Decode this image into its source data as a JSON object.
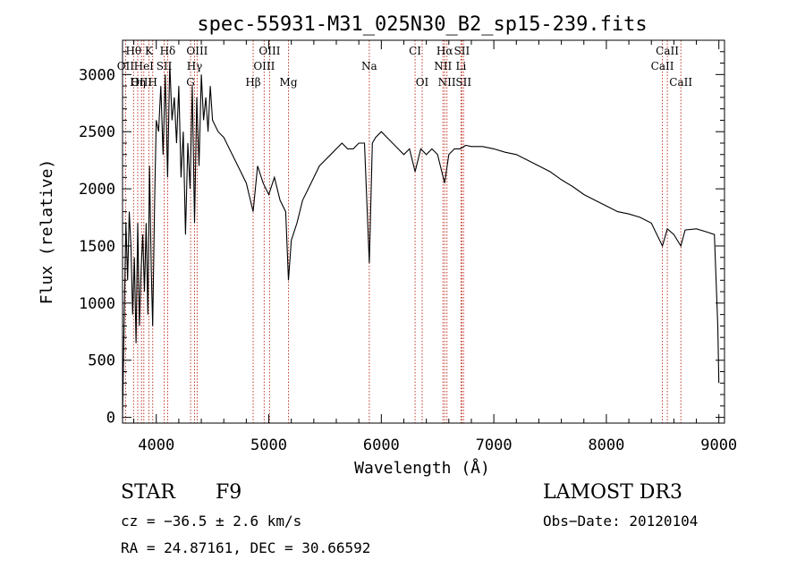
{
  "chart_data": {
    "type": "line",
    "title": "spec-55931-M31_025N30_B2_sp15-239.fits",
    "xlabel": "Wavelength (Å)",
    "ylabel": "Flux (relative)",
    "xlim": [
      3700,
      9050
    ],
    "ylim": [
      -50,
      3300
    ],
    "xticks": [
      4000,
      5000,
      6000,
      7000,
      8000,
      9000
    ],
    "yticks": [
      0,
      500,
      1000,
      1500,
      2000,
      2500,
      3000
    ],
    "xtick_labels": [
      "4000",
      "5000",
      "6000",
      "7000",
      "8000",
      "9000"
    ],
    "ytick_labels": [
      "0",
      "500",
      "1000",
      "1500",
      "2000",
      "2500",
      "3000"
    ],
    "grid": false,
    "series": [
      {
        "name": "flux",
        "x": [
          3700,
          3715,
          3730,
          3745,
          3760,
          3775,
          3790,
          3805,
          3820,
          3835,
          3850,
          3865,
          3880,
          3895,
          3910,
          3925,
          3940,
          3955,
          3968,
          3985,
          4000,
          4020,
          4040,
          4060,
          4080,
          4101,
          4120,
          4140,
          4160,
          4180,
          4200,
          4220,
          4240,
          4260,
          4280,
          4300,
          4320,
          4340,
          4360,
          4380,
          4400,
          4420,
          4440,
          4460,
          4480,
          4500,
          4550,
          4600,
          4650,
          4700,
          4750,
          4800,
          4861,
          4900,
          4950,
          5000,
          5050,
          5100,
          5150,
          5175,
          5200,
          5250,
          5300,
          5350,
          5400,
          5450,
          5500,
          5550,
          5600,
          5650,
          5700,
          5750,
          5800,
          5850,
          5893,
          5920,
          5950,
          6000,
          6050,
          6100,
          6150,
          6200,
          6250,
          6300,
          6350,
          6400,
          6450,
          6500,
          6563,
          6600,
          6650,
          6700,
          6750,
          6800,
          6900,
          7000,
          7100,
          7200,
          7300,
          7400,
          7500,
          7600,
          7700,
          7800,
          7900,
          8000,
          8100,
          8200,
          8300,
          8400,
          8498,
          8542,
          8600,
          8662,
          8700,
          8800,
          8900,
          8960,
          8990,
          9000
        ],
        "values": [
          0,
          900,
          1700,
          1200,
          1800,
          1500,
          900,
          1400,
          650,
          1700,
          800,
          1300,
          1600,
          1100,
          1700,
          900,
          2200,
          1300,
          800,
          1900,
          2600,
          2500,
          2900,
          2300,
          3000,
          2100,
          3100,
          2600,
          2800,
          2400,
          2900,
          2100,
          2500,
          1600,
          2400,
          2000,
          2900,
          1700,
          2800,
          2200,
          3000,
          2600,
          2800,
          2500,
          2900,
          2600,
          2500,
          2450,
          2350,
          2250,
          2150,
          2050,
          1800,
          2200,
          2050,
          1950,
          2100,
          1900,
          1800,
          1200,
          1550,
          1700,
          1900,
          2000,
          2100,
          2200,
          2250,
          2300,
          2350,
          2400,
          2350,
          2350,
          2400,
          2400,
          1350,
          2400,
          2450,
          2500,
          2450,
          2400,
          2350,
          2300,
          2350,
          2150,
          2350,
          2300,
          2350,
          2300,
          2050,
          2300,
          2350,
          2350,
          2380,
          2370,
          2370,
          2350,
          2320,
          2300,
          2250,
          2200,
          2150,
          2080,
          2020,
          1950,
          1900,
          1850,
          1800,
          1780,
          1750,
          1700,
          1500,
          1650,
          1600,
          1500,
          1640,
          1650,
          1620,
          1600,
          800,
          300
        ]
      }
    ],
    "line_markers": [
      {
        "label": "Hθ",
        "wave": 3798,
        "row": 1
      },
      {
        "label": "K",
        "wave": 3934,
        "row": 1
      },
      {
        "label": "Hδ",
        "wave": 4101,
        "row": 1
      },
      {
        "label": "OIII",
        "wave": 4363,
        "row": 1
      },
      {
        "label": "OIII",
        "wave": 5007,
        "row": 1
      },
      {
        "label": "CI",
        "wave": 6300,
        "row": 1
      },
      {
        "label": "Hα",
        "wave": 6563,
        "row": 1
      },
      {
        "label": "SII",
        "wave": 6716,
        "row": 1
      },
      {
        "label": "CaII",
        "wave": 8542,
        "row": 1
      },
      {
        "label": "OII",
        "wave": 3727,
        "row": 2
      },
      {
        "label": "HeI",
        "wave": 3889,
        "row": 2
      },
      {
        "label": "SII",
        "wave": 4070,
        "row": 2
      },
      {
        "label": "Hγ",
        "wave": 4340,
        "row": 2
      },
      {
        "label": "OIII",
        "wave": 4959,
        "row": 2
      },
      {
        "label": "Na",
        "wave": 5893,
        "row": 2
      },
      {
        "label": "NII",
        "wave": 6548,
        "row": 2
      },
      {
        "label": "Li",
        "wave": 6708,
        "row": 2
      },
      {
        "label": "CaII",
        "wave": 8498,
        "row": 2
      },
      {
        "label": "OIII",
        "wave": 3869,
        "row": 3
      },
      {
        "label": "Hη",
        "wave": 3835,
        "row": 3
      },
      {
        "label": "H",
        "wave": 3968,
        "row": 3
      },
      {
        "label": "G",
        "wave": 4305,
        "row": 3
      },
      {
        "label": "Hβ",
        "wave": 4861,
        "row": 3
      },
      {
        "label": "Mg",
        "wave": 5175,
        "row": 3
      },
      {
        "label": "OI",
        "wave": 6363,
        "row": 3
      },
      {
        "label": "NII",
        "wave": 6583,
        "row": 3
      },
      {
        "label": "SII",
        "wave": 6731,
        "row": 3
      },
      {
        "label": "CaII",
        "wave": 8662,
        "row": 3
      }
    ]
  },
  "info": {
    "object_class": "STAR",
    "subclass": "F9",
    "cz": "cz = −36.5 ± 2.6 km/s",
    "coords": "RA =  24.87161, DEC =  30.66592",
    "survey": "LAMOST DR3",
    "obs_date": "Obs−Date: 20120104"
  },
  "colors": {
    "marker_line": "#c0392b",
    "axis": "#000000",
    "spectrum": "#000000"
  }
}
